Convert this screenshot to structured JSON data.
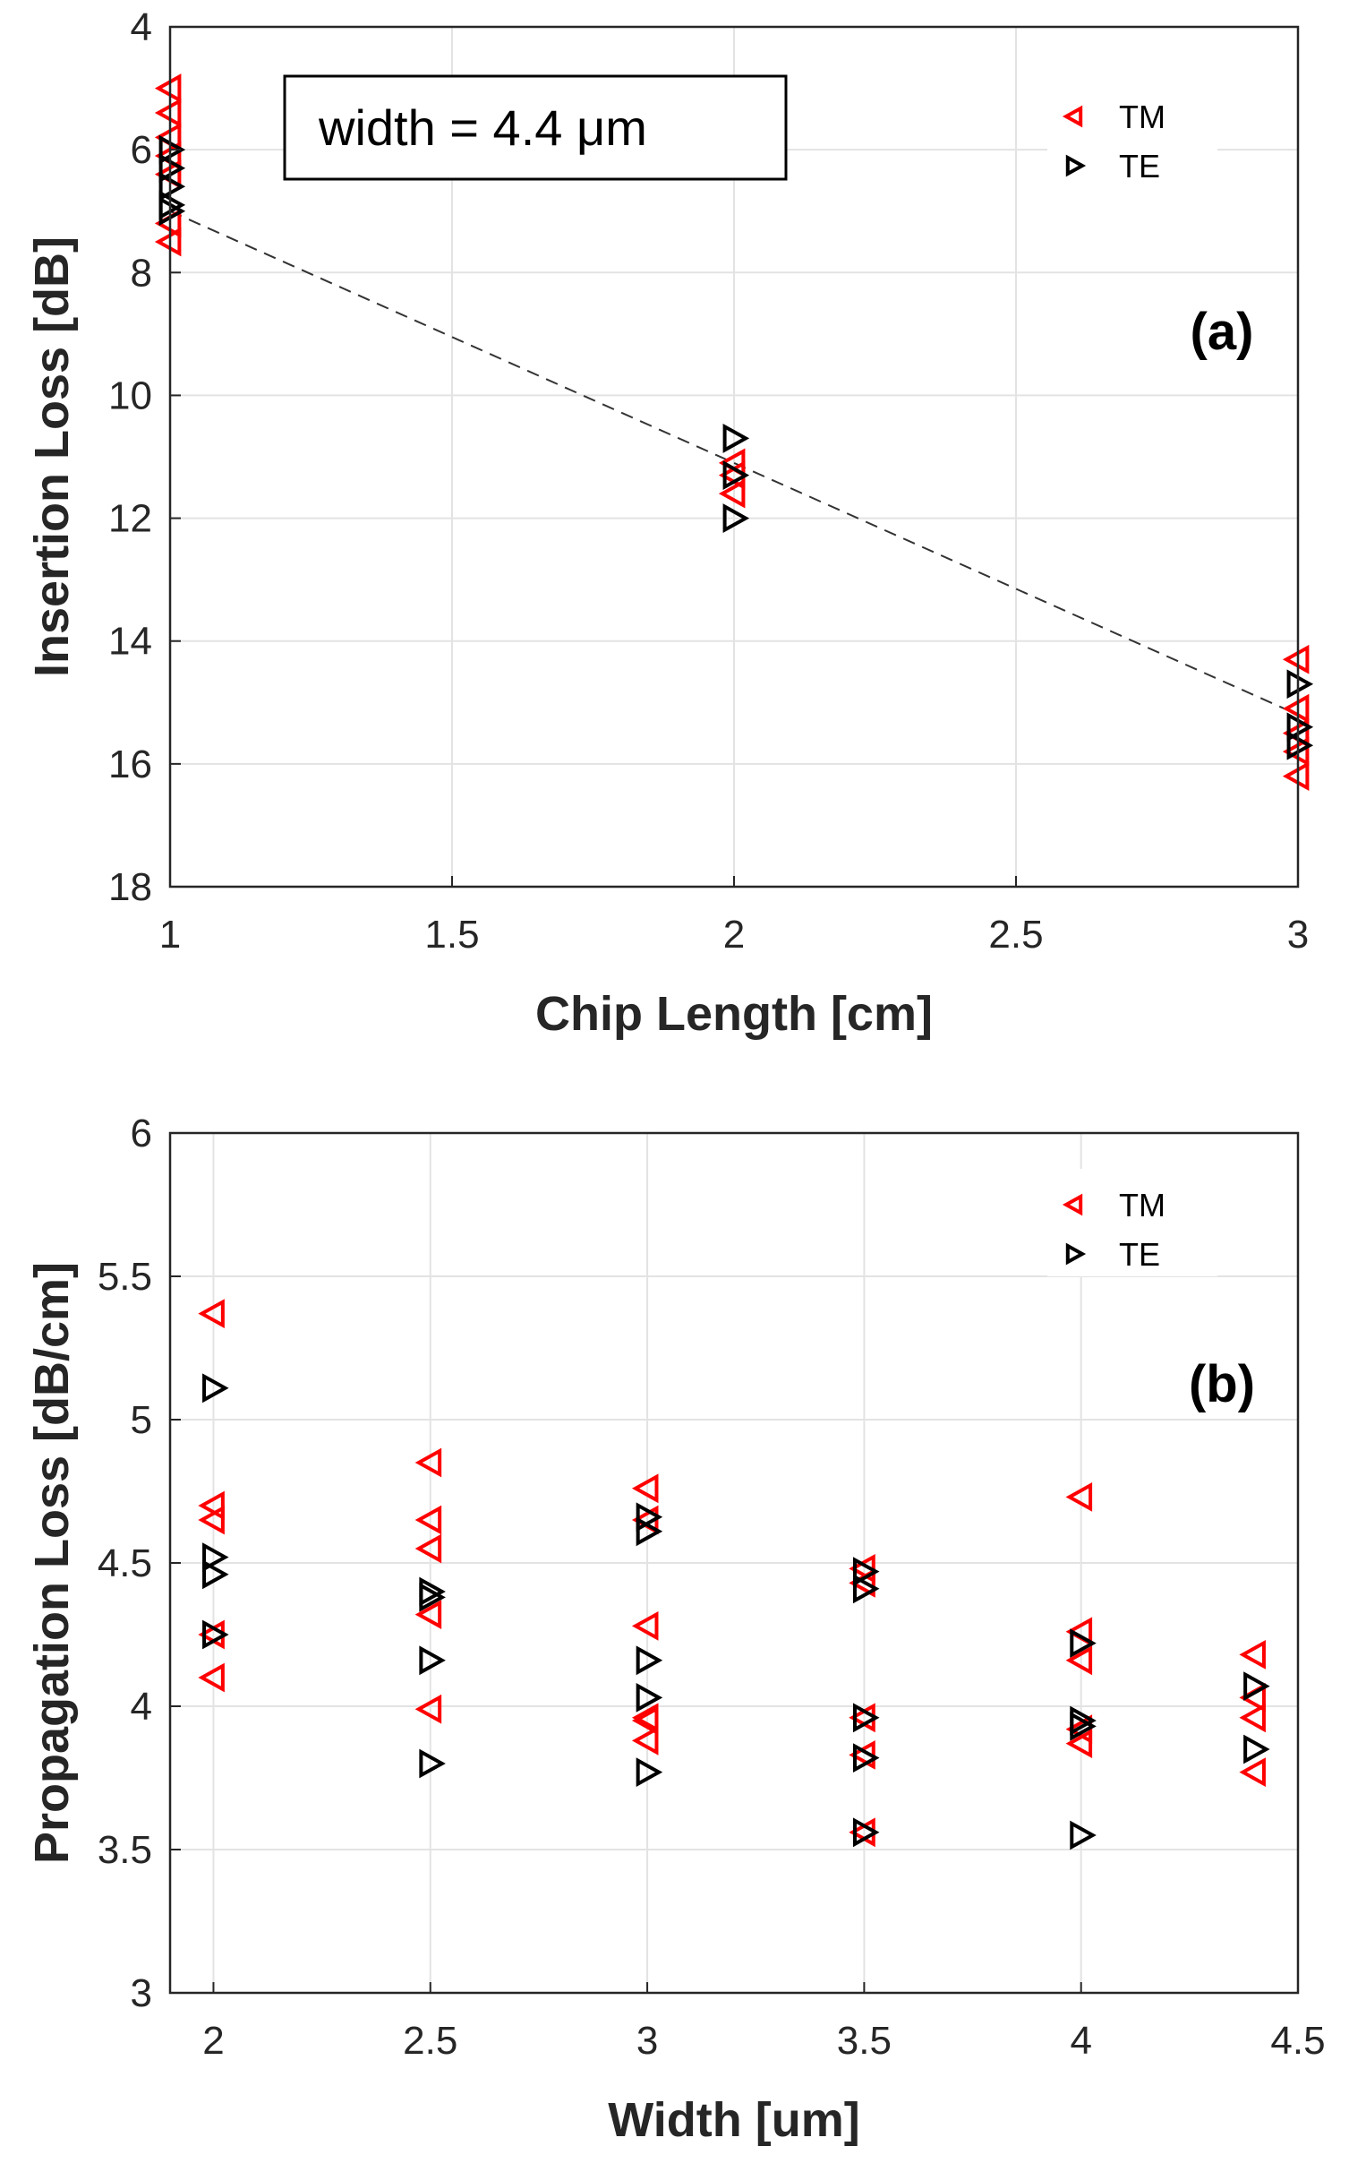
{
  "chart_data": [
    {
      "type": "scatter",
      "panel_label": "(a)",
      "xlabel": "Chip Length [cm]",
      "ylabel": "Insertion Loss [dB]",
      "xlim": [
        1,
        3
      ],
      "ylim": [
        4,
        18
      ],
      "y_reversed": true,
      "xticks": [
        1,
        1.5,
        2,
        2.5,
        3
      ],
      "yticks": [
        4,
        6,
        8,
        10,
        12,
        14,
        16,
        18
      ],
      "xtick_labels": [
        "1",
        "1.5",
        "2",
        "2.5",
        "3"
      ],
      "ytick_labels": [
        "4",
        "6",
        "8",
        "10",
        "12",
        "14",
        "16",
        "18"
      ],
      "grid": true,
      "legend_position": "top-right",
      "annotation": "width = 4.4 μm",
      "series": [
        {
          "name": "TM",
          "marker": "triangle-left",
          "color": "#ff0000",
          "x": [
            1,
            1,
            1,
            1,
            1,
            1,
            1,
            2,
            2,
            2,
            3,
            3,
            3,
            3,
            3
          ],
          "y": [
            5.0,
            5.4,
            5.8,
            6.1,
            6.4,
            7.2,
            7.5,
            11.1,
            11.3,
            11.6,
            14.3,
            15.1,
            15.5,
            15.8,
            16.2
          ]
        },
        {
          "name": "TE",
          "marker": "triangle-right",
          "color": "#000000",
          "x": [
            1,
            1,
            1,
            1,
            1,
            2,
            2,
            2,
            3,
            3,
            3
          ],
          "y": [
            6.0,
            6.3,
            6.6,
            6.9,
            7.0,
            10.7,
            11.3,
            12.0,
            14.7,
            15.4,
            15.7
          ]
        }
      ],
      "fit_line": {
        "x": [
          1,
          3
        ],
        "y": [
          7.0,
          15.2
        ],
        "style": "dashed",
        "color": "#333333"
      }
    },
    {
      "type": "scatter",
      "panel_label": "(b)",
      "xlabel": "Width [um]",
      "ylabel": "Propagation Loss [dB/cm]",
      "xlim": [
        1.9,
        4.5
      ],
      "ylim": [
        3,
        6
      ],
      "y_reversed": false,
      "xticks": [
        2,
        2.5,
        3,
        3.5,
        4,
        4.5
      ],
      "yticks": [
        3,
        3.5,
        4,
        4.5,
        5,
        5.5,
        6
      ],
      "xtick_labels": [
        "2",
        "2.5",
        "3",
        "3.5",
        "4",
        "4.5"
      ],
      "ytick_labels": [
        "3",
        "3.5",
        "4",
        "4.5",
        "5",
        "5.5",
        "6"
      ],
      "grid": true,
      "legend_position": "top-right",
      "series": [
        {
          "name": "TM",
          "marker": "triangle-left",
          "color": "#ff0000",
          "x": [
            2,
            2,
            2,
            2,
            2,
            2.5,
            2.5,
            2.5,
            2.5,
            2.5,
            3,
            3,
            3,
            3,
            3,
            3,
            3.5,
            3.5,
            3.5,
            3.5,
            3.5,
            4,
            4,
            4,
            4,
            4,
            4.4,
            4.4,
            4.4,
            4.4
          ],
          "y": [
            5.37,
            4.7,
            4.65,
            4.25,
            4.1,
            4.85,
            4.65,
            4.55,
            4.32,
            3.99,
            4.76,
            4.65,
            4.28,
            3.95,
            3.88,
            3.96,
            4.48,
            4.43,
            3.96,
            3.83,
            3.56,
            4.73,
            4.26,
            4.16,
            3.92,
            3.87,
            4.18,
            4.03,
            3.96,
            3.77
          ]
        },
        {
          "name": "TE",
          "marker": "triangle-right",
          "color": "#000000",
          "x": [
            2,
            2,
            2,
            2,
            2.5,
            2.5,
            2.5,
            2.5,
            3,
            3,
            3,
            3,
            3,
            3.5,
            3.5,
            3.5,
            3.5,
            3.5,
            4,
            4,
            4,
            4,
            4.4,
            4.4
          ],
          "y": [
            5.11,
            4.52,
            4.46,
            4.25,
            4.4,
            4.38,
            4.16,
            3.8,
            4.66,
            4.61,
            4.16,
            4.03,
            3.77,
            4.47,
            4.41,
            3.96,
            3.82,
            3.56,
            4.22,
            3.95,
            3.93,
            3.55,
            4.07,
            3.85
          ]
        }
      ]
    }
  ]
}
